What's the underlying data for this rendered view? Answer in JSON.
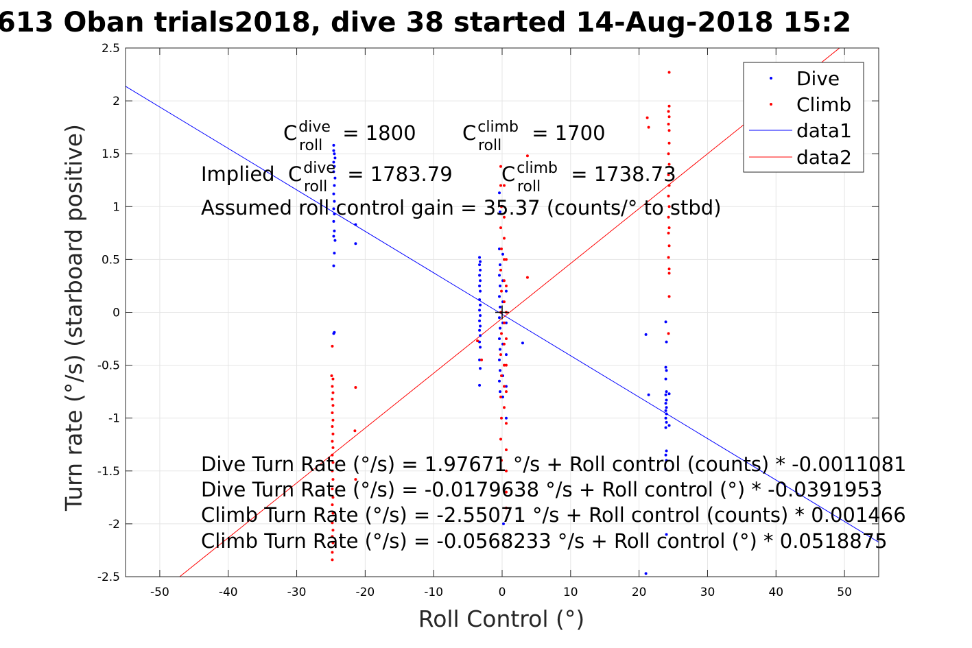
{
  "chart_data": {
    "type": "scatter",
    "title": "613 Oban trials2018, dive 38 started 14-Aug-2018 15:2",
    "xlabel": "Roll Control (°)",
    "ylabel": "Turn rate (°/s) (starboard positive)",
    "xlim": [
      -55,
      55
    ],
    "ylim": [
      -2.5,
      2.5
    ],
    "xticks": [
      -50,
      -40,
      -30,
      -20,
      -10,
      0,
      10,
      20,
      30,
      40,
      50
    ],
    "xtick_labels": [
      "-50",
      "-40",
      "-30",
      "-20",
      "-10",
      "0",
      "10",
      "20",
      "30",
      "40",
      "50"
    ],
    "yticks": [
      -2.5,
      -2,
      -1.5,
      -1,
      -0.5,
      0,
      0.5,
      1,
      1.5,
      2,
      2.5
    ],
    "ytick_labels": [
      "-2.5",
      "-2",
      "-1.5",
      "-1",
      "-0.5",
      "0",
      "0.5",
      "1",
      "1.5",
      "2",
      "2.5"
    ],
    "grid": true,
    "legend": {
      "placement": "top-right",
      "entries": [
        "Dive",
        "Climb",
        "data1",
        "data2"
      ]
    },
    "colors": {
      "dive": "#0000ff",
      "climb": "#ff0000",
      "axes": "#262626",
      "grid": "#e5e5e5"
    },
    "series": [
      {
        "name": "Dive",
        "marker": "dot",
        "points": [
          [
            -24.6,
            1.58
          ],
          [
            -24.6,
            1.53
          ],
          [
            -24.5,
            1.5
          ],
          [
            -24.4,
            1.46
          ],
          [
            -24.6,
            1.42
          ],
          [
            -24.5,
            1.38
          ],
          [
            -24.6,
            1.33
          ],
          [
            -24.4,
            1.27
          ],
          [
            -24.5,
            1.2
          ],
          [
            -24.6,
            1.12
          ],
          [
            -24.5,
            1.05
          ],
          [
            -24.6,
            0.98
          ],
          [
            -24.5,
            0.93
          ],
          [
            -24.6,
            0.86
          ],
          [
            -24.5,
            0.77
          ],
          [
            -24.6,
            0.72
          ],
          [
            -24.4,
            0.68
          ],
          [
            -24.5,
            0.56
          ],
          [
            -24.6,
            0.44
          ],
          [
            -24.6,
            -0.2
          ],
          [
            -24.5,
            -0.19
          ],
          [
            -21.4,
            0.83
          ],
          [
            -21.4,
            0.65
          ],
          [
            -3.3,
            0.52
          ],
          [
            -3.2,
            0.48
          ],
          [
            -3.3,
            0.45
          ],
          [
            -3.2,
            0.4
          ],
          [
            -3.3,
            0.35
          ],
          [
            -3.2,
            0.3
          ],
          [
            -3.3,
            0.25
          ],
          [
            -3.2,
            0.2
          ],
          [
            -3.3,
            0.12
          ],
          [
            -3.2,
            0.07
          ],
          [
            -3.3,
            0.02
          ],
          [
            -3.2,
            -0.03
          ],
          [
            -3.3,
            -0.08
          ],
          [
            -3.2,
            -0.13
          ],
          [
            -3.3,
            -0.17
          ],
          [
            -3.2,
            -0.22
          ],
          [
            -3.3,
            -0.28
          ],
          [
            -3.2,
            -0.33
          ],
          [
            -3.3,
            -0.45
          ],
          [
            -3.2,
            -0.53
          ],
          [
            -3.3,
            -0.69
          ],
          [
            -0.4,
            1.13
          ],
          [
            -0.3,
            0.95
          ],
          [
            -0.4,
            0.6
          ],
          [
            -0.3,
            0.45
          ],
          [
            -0.4,
            0.35
          ],
          [
            -0.3,
            0.25
          ],
          [
            -0.4,
            0.15
          ],
          [
            -0.3,
            0.05
          ],
          [
            -0.4,
            -0.05
          ],
          [
            -0.3,
            -0.15
          ],
          [
            -0.4,
            -0.25
          ],
          [
            -0.3,
            -0.35
          ],
          [
            -0.4,
            -0.45
          ],
          [
            -0.3,
            -0.55
          ],
          [
            -0.4,
            -0.65
          ],
          [
            -0.3,
            -0.75
          ],
          [
            0.1,
            0.55
          ],
          [
            0.1,
            0.3
          ],
          [
            0.1,
            0.1
          ],
          [
            0.1,
            -0.1
          ],
          [
            0.1,
            -0.3
          ],
          [
            0.1,
            -0.6
          ],
          [
            0.1,
            -0.8
          ],
          [
            0.2,
            -2.0
          ],
          [
            0.6,
            0.2
          ],
          [
            0.6,
            -0.1
          ],
          [
            0.6,
            -0.4
          ],
          [
            0.6,
            -0.7
          ],
          [
            0.6,
            -1.0
          ],
          [
            3.0,
            -0.29
          ],
          [
            21.0,
            -0.21
          ],
          [
            21.4,
            -0.78
          ],
          [
            21.0,
            -2.47
          ],
          [
            23.9,
            -0.09
          ],
          [
            24.0,
            -0.28
          ],
          [
            23.9,
            -0.52
          ],
          [
            24.0,
            -0.55
          ],
          [
            23.9,
            -0.63
          ],
          [
            24.0,
            -0.75
          ],
          [
            23.9,
            -0.78
          ],
          [
            24.0,
            -0.83
          ],
          [
            23.9,
            -0.86
          ],
          [
            24.0,
            -0.9
          ],
          [
            23.9,
            -0.93
          ],
          [
            24.0,
            -0.96
          ],
          [
            23.9,
            -1.0
          ],
          [
            24.0,
            -1.04
          ],
          [
            23.9,
            -1.09
          ],
          [
            24.0,
            -1.31
          ],
          [
            23.9,
            -1.35
          ],
          [
            24.0,
            -1.4
          ],
          [
            23.9,
            -1.48
          ],
          [
            24.0,
            -2.1
          ],
          [
            24.4,
            -0.77
          ],
          [
            24.4,
            -1.07
          ]
        ]
      },
      {
        "name": "Climb",
        "marker": "dot",
        "points": [
          [
            -24.8,
            -0.32
          ],
          [
            -24.9,
            -0.6
          ],
          [
            -24.7,
            -0.63
          ],
          [
            -24.8,
            -0.7
          ],
          [
            -24.7,
            -0.76
          ],
          [
            -24.8,
            -0.82
          ],
          [
            -24.7,
            -0.88
          ],
          [
            -24.8,
            -0.95
          ],
          [
            -24.7,
            -1.02
          ],
          [
            -24.8,
            -1.08
          ],
          [
            -24.7,
            -1.15
          ],
          [
            -24.8,
            -1.22
          ],
          [
            -24.7,
            -1.28
          ],
          [
            -24.8,
            -1.35
          ],
          [
            -24.7,
            -1.42
          ],
          [
            -24.8,
            -1.5
          ],
          [
            -24.7,
            -1.58
          ],
          [
            -24.8,
            -1.67
          ],
          [
            -24.7,
            -1.75
          ],
          [
            -24.8,
            -1.82
          ],
          [
            -24.7,
            -1.9
          ],
          [
            -24.8,
            -1.99
          ],
          [
            -24.7,
            -2.06
          ],
          [
            -24.8,
            -2.12
          ],
          [
            -24.7,
            -2.18
          ],
          [
            -24.8,
            -2.27
          ],
          [
            -24.8,
            -2.34
          ],
          [
            -21.4,
            -0.71
          ],
          [
            -21.5,
            -1.12
          ],
          [
            -21.4,
            -1.58
          ],
          [
            -3.6,
            -0.27
          ],
          [
            -3.0,
            -0.45
          ],
          [
            -0.2,
            1.38
          ],
          [
            -0.2,
            1.2
          ],
          [
            -0.1,
            1.0
          ],
          [
            -0.2,
            0.8
          ],
          [
            -0.1,
            0.6
          ],
          [
            -0.2,
            0.4
          ],
          [
            -0.1,
            0.2
          ],
          [
            -0.2,
            0.0
          ],
          [
            -0.1,
            -0.2
          ],
          [
            -0.2,
            -0.4
          ],
          [
            -0.1,
            -0.6
          ],
          [
            -0.2,
            -0.8
          ],
          [
            -0.1,
            -1.0
          ],
          [
            -0.2,
            -1.2
          ],
          [
            -0.1,
            -1.4
          ],
          [
            0.3,
            1.2
          ],
          [
            0.3,
            0.9
          ],
          [
            0.3,
            0.7
          ],
          [
            0.3,
            0.5
          ],
          [
            0.3,
            0.3
          ],
          [
            0.3,
            0.1
          ],
          [
            0.3,
            -0.1
          ],
          [
            0.3,
            -0.3
          ],
          [
            0.3,
            -0.5
          ],
          [
            0.3,
            -0.7
          ],
          [
            0.3,
            -0.9
          ],
          [
            0.6,
            0.5
          ],
          [
            0.6,
            0.25
          ],
          [
            0.6,
            0.0
          ],
          [
            0.6,
            -0.25
          ],
          [
            0.6,
            -0.5
          ],
          [
            0.6,
            -0.75
          ],
          [
            0.6,
            -1.05
          ],
          [
            0.6,
            -1.3
          ],
          [
            0.6,
            -1.5
          ],
          [
            0.6,
            -1.7
          ],
          [
            0.6,
            -1.85
          ],
          [
            3.7,
            1.48
          ],
          [
            3.7,
            0.33
          ],
          [
            21.2,
            1.84
          ],
          [
            21.4,
            1.75
          ],
          [
            24.4,
            2.27
          ],
          [
            24.4,
            1.95
          ],
          [
            24.3,
            1.9
          ],
          [
            24.4,
            1.85
          ],
          [
            24.3,
            1.78
          ],
          [
            24.4,
            1.72
          ],
          [
            24.4,
            1.6
          ],
          [
            24.3,
            1.5
          ],
          [
            24.4,
            1.4
          ],
          [
            24.3,
            1.3
          ],
          [
            24.4,
            1.2
          ],
          [
            24.3,
            1.1
          ],
          [
            24.4,
            1.0
          ],
          [
            24.3,
            0.9
          ],
          [
            24.4,
            0.8
          ],
          [
            24.3,
            0.75
          ],
          [
            24.4,
            0.63
          ],
          [
            24.3,
            0.52
          ],
          [
            24.4,
            0.41
          ],
          [
            24.4,
            0.37
          ],
          [
            24.4,
            0.15
          ],
          [
            24.3,
            -0.2
          ]
        ]
      },
      {
        "name": "data1",
        "type": "line",
        "intercept": -0.0179638,
        "slope": -0.0391953
      },
      {
        "name": "data2",
        "type": "line",
        "intercept": -0.0568233,
        "slope": 0.0518875
      }
    ],
    "origin_marker": [
      0,
      0
    ],
    "annotations": {
      "c_dive": {
        "base": "C",
        "sup": "dive",
        "sub": "roll",
        "value": " = 1800"
      },
      "c_climb": {
        "base": "C",
        "sup": "climb",
        "sub": "roll",
        "value": " = 1700"
      },
      "implied_prefix": "Implied ",
      "implied_dive": {
        "base": "C",
        "sup": "dive",
        "sub": "roll",
        "value": " = 1783.79"
      },
      "implied_climb": {
        "base": "C",
        "sup": "climb",
        "sub": "roll",
        "value": " = 1738.73"
      },
      "gain": "Assumed roll control gain = 35.37 (counts/° to stbd)",
      "fits": [
        "Dive Turn Rate (°/s) = 1.97671 °/s + Roll control (counts) * -0.0011081",
        "Dive Turn Rate (°/s) = -0.0179638 °/s + Roll control (°) * -0.0391953",
        "Climb Turn Rate (°/s) = -2.55071 °/s + Roll control (counts) * 0.001466",
        "Climb Turn Rate (°/s) = -0.0568233 °/s + Roll control (°) * 0.0518875"
      ]
    }
  }
}
